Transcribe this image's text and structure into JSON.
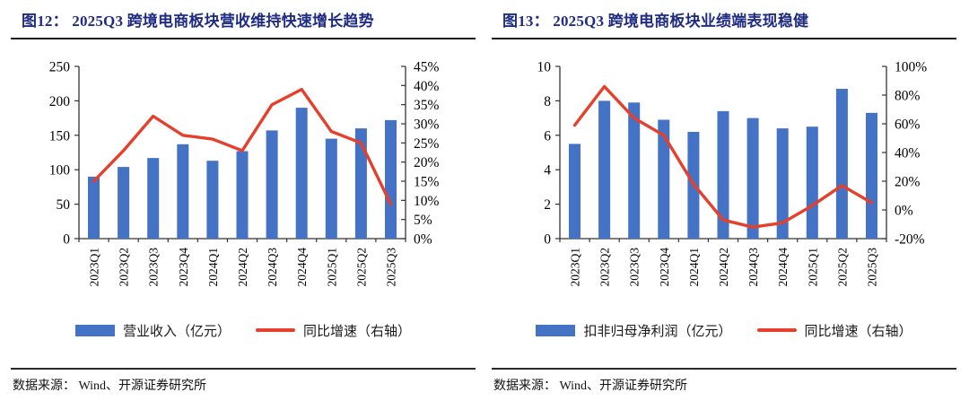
{
  "page": {
    "source_label": "数据来源： Wind、开源证券研究所"
  },
  "colors": {
    "bar_blue": "#4472C4",
    "line_red": "#E5402C",
    "title_navy": "#1F2C82",
    "axis_black": "#333333"
  },
  "panels": [
    {
      "title": "图12： 2025Q3 跨境电商板块营收维持快速增长趋势"
    },
    {
      "title": "图13： 2025Q3 跨境电商板块业绩端表现稳健"
    }
  ],
  "chart_data": [
    {
      "type": "bar",
      "subtype": "bar+line-dual-axis",
      "title": "2025Q3 跨境电商板块营收维持快速增长趋势",
      "categories": [
        "2023Q1",
        "2023Q2",
        "2023Q3",
        "2023Q4",
        "2024Q1",
        "2024Q2",
        "2024Q3",
        "2024Q4",
        "2025Q1",
        "2025Q2",
        "2025Q3"
      ],
      "series": [
        {
          "name": "营业收入（亿元）",
          "kind": "bar",
          "axis": "left",
          "values": [
            90,
            104,
            117,
            137,
            113,
            127,
            157,
            190,
            145,
            160,
            172
          ]
        },
        {
          "name": "同比增速（右轴）",
          "kind": "line",
          "axis": "right",
          "values": [
            15,
            23,
            32,
            27,
            26,
            23,
            35,
            39,
            28,
            25,
            9
          ]
        }
      ],
      "left_axis": {
        "min": 0,
        "max": 250,
        "ticks": [
          "0",
          "50",
          "100",
          "150",
          "200",
          "250"
        ]
      },
      "right_axis": {
        "min": 0,
        "max": 45,
        "ticks": [
          "0%",
          "5%",
          "10%",
          "15%",
          "20%",
          "25%",
          "30%",
          "35%",
          "40%",
          "45%"
        ]
      },
      "grid": false,
      "legend_position": "bottom"
    },
    {
      "type": "bar",
      "subtype": "bar+line-dual-axis",
      "title": "2025Q3 跨境电商板块业绩端表现稳健",
      "categories": [
        "2023Q1",
        "2023Q2",
        "2023Q3",
        "2023Q4",
        "2024Q1",
        "2024Q2",
        "2024Q3",
        "2024Q4",
        "2025Q1",
        "2025Q2",
        "2025Q3"
      ],
      "series": [
        {
          "name": "扣非归母净利润（亿元）",
          "kind": "bar",
          "axis": "left",
          "values": [
            5.5,
            8.0,
            7.9,
            6.9,
            6.2,
            7.4,
            7.0,
            6.4,
            6.5,
            8.7,
            7.3
          ]
        },
        {
          "name": "同比增速（右轴）",
          "kind": "line",
          "axis": "right",
          "values": [
            59,
            86,
            64,
            52,
            18,
            -7,
            -12,
            -9,
            3,
            17,
            5
          ]
        }
      ],
      "left_axis": {
        "min": 0,
        "max": 10,
        "ticks": [
          "0",
          "2",
          "4",
          "6",
          "8",
          "10"
        ]
      },
      "right_axis": {
        "min": -20,
        "max": 100,
        "ticks": [
          "-20%",
          "0%",
          "20%",
          "40%",
          "60%",
          "80%",
          "100%"
        ]
      },
      "grid": false,
      "legend_position": "bottom"
    }
  ]
}
